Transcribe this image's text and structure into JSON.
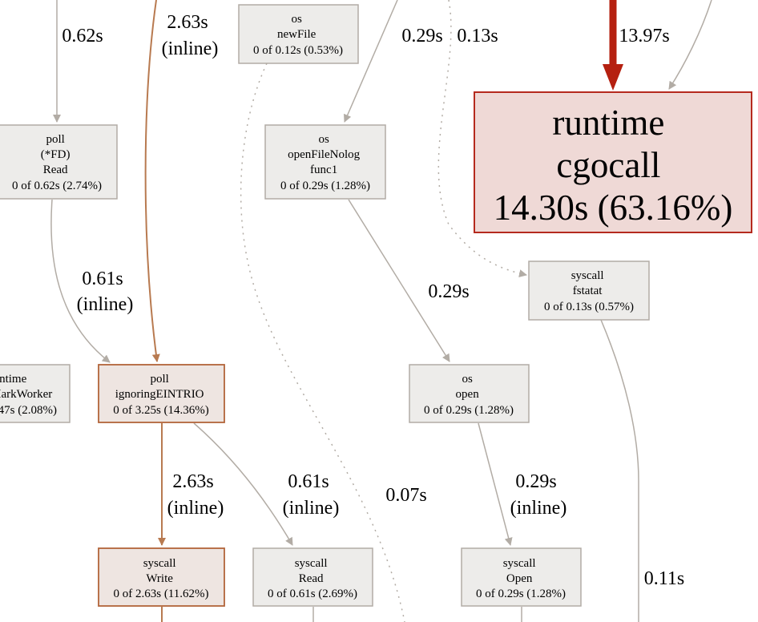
{
  "colors": {
    "background": "#ffffff",
    "neutral_fill": "#edecea",
    "neutral_stroke": "#b2aca5",
    "neutral_edge": "#b2aca5",
    "warm_fill": "#eee5e1",
    "warm_stroke": "#b2643a",
    "warm_edge": "#b87a50",
    "hot_fill": "#efd9d6",
    "hot_stroke": "#b52a1e",
    "hot_edge": "#b52010",
    "text": "#000000"
  },
  "nodes": {
    "os_newfile": {
      "lines": [
        "os",
        "newFile",
        "0 of 0.12s (0.53%)"
      ]
    },
    "poll_fd_read": {
      "lines": [
        "poll",
        "(*FD)",
        "Read",
        "0 of 0.62s (2.74%)"
      ]
    },
    "os_openfilenolog_func1": {
      "lines": [
        "os",
        "openFileNolog",
        "func1",
        "0 of 0.29s (1.28%)"
      ]
    },
    "runtime_cgocall": {
      "lines": [
        "runtime",
        "cgocall",
        "14.30s (63.16%)"
      ]
    },
    "syscall_fstatat": {
      "lines": [
        "syscall",
        "fstatat",
        "0 of 0.13s (0.57%)"
      ]
    },
    "runtime_markworker": {
      "lines": [
        "ntime",
        "MarkWorker",
        "47s (2.08%)"
      ]
    },
    "poll_ignoringeintrio": {
      "lines": [
        "poll",
        "ignoringEINTRIO",
        "0 of 3.25s (14.36%)"
      ]
    },
    "os_open": {
      "lines": [
        "os",
        "open",
        "0 of 0.29s (1.28%)"
      ]
    },
    "syscall_write": {
      "lines": [
        "syscall",
        "Write",
        "0 of 2.63s (11.62%)"
      ]
    },
    "syscall_read": {
      "lines": [
        "syscall",
        "Read",
        "0 of 0.61s (2.69%)"
      ]
    },
    "syscall_open": {
      "lines": [
        "syscall",
        "Open",
        "0 of 0.29s (1.28%)"
      ]
    }
  },
  "edge_labels": {
    "into_poll_fd_read": [
      "0.62s"
    ],
    "into_ignoringeintrio_top": [
      "2.63s",
      "(inline)"
    ],
    "into_openfilenolog_func1": [
      "0.29s"
    ],
    "into_fstatat": [
      "0.13s"
    ],
    "into_cgocall_hot": [
      "13.97s"
    ],
    "fd_read_to_ignoringeintrio": [
      "0.61s",
      "(inline)"
    ],
    "func1_to_os_open": [
      "0.29s"
    ],
    "ignoringeintrio_to_write": [
      "2.63s",
      "(inline)"
    ],
    "ignoringeintrio_to_read": [
      "0.61s",
      "(inline)"
    ],
    "newfile_dotted_down": [
      "0.07s"
    ],
    "os_open_to_syscall_open": [
      "0.29s",
      "(inline)"
    ],
    "fstatat_down": [
      "0.11s"
    ]
  }
}
